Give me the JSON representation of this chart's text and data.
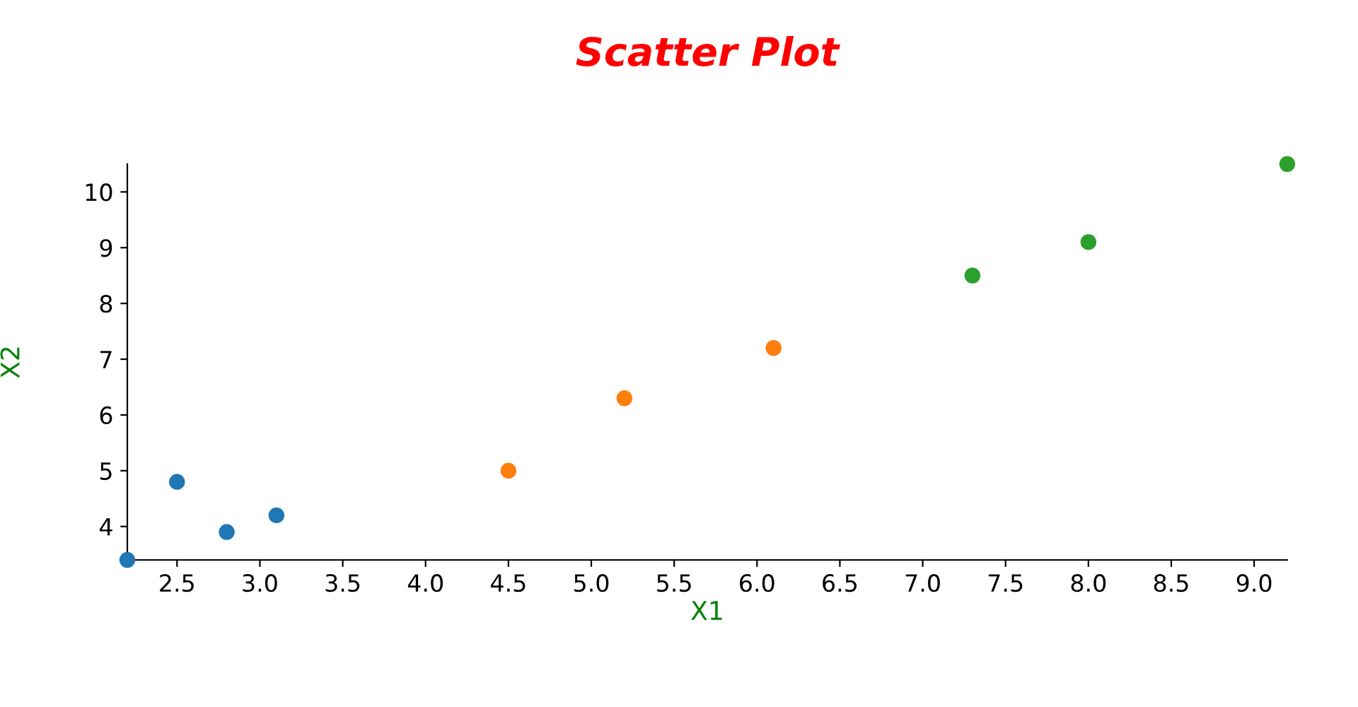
{
  "chart_data": {
    "type": "scatter",
    "title": "Scatter Plot",
    "xlabel": "X1",
    "ylabel": "X2",
    "series": [
      {
        "color": "#1f77b4",
        "x": [
          2.2,
          2.5,
          2.8,
          3.1
        ],
        "values": [
          3.4,
          4.8,
          3.9,
          4.2
        ]
      },
      {
        "color": "#ff7f0e",
        "x": [
          4.5,
          5.2,
          6.1
        ],
        "values": [
          5.0,
          6.3,
          7.2
        ]
      },
      {
        "color": "#2ca02c",
        "x": [
          7.3,
          8.0,
          9.2
        ],
        "values": [
          8.5,
          9.1,
          10.5
        ]
      }
    ],
    "xlim": [
      2.2,
      9.2
    ],
    "ylim": [
      3.4,
      10.5
    ],
    "xticks": [
      2.5,
      {
        "value": 3,
        "label": "3.0"
      },
      3.5,
      {
        "value": 4,
        "label": "4.0"
      },
      4.5,
      {
        "value": 5,
        "label": "5.0"
      },
      5.5,
      {
        "value": 6,
        "label": "6.0"
      },
      6.5,
      {
        "value": 7,
        "label": "7.0"
      },
      7.5,
      {
        "value": 8,
        "label": "8.0"
      },
      8.5,
      {
        "value": 9,
        "label": "9.0"
      }
    ],
    "yticks": [
      4,
      5,
      6,
      7,
      8,
      9,
      10
    ],
    "grid": false,
    "legend": false,
    "marker": "circle"
  }
}
